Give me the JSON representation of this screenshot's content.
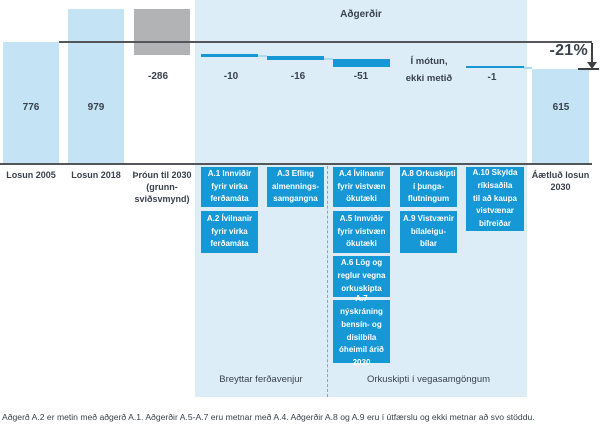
{
  "header": {
    "actions_title": "Aðgerðir"
  },
  "waterfall": {
    "percent_change": "-21%",
    "pending_note": "Í mótun,\nekki metið",
    "values": {
      "losun2005": "776",
      "losun2018": "979",
      "throun2030": "-286",
      "a1a2": "-10",
      "a3": "-16",
      "a4a7": "-51",
      "a10": "-1",
      "aetlud2030": "615"
    },
    "column_labels": {
      "losun2005": "Losun 2005",
      "losun2018": "Losun 2018",
      "throun2030": "Þróun til 2030\n(grunn-\nsviðsvmynd)",
      "aetlud2030": "Áætluð losun\n2030"
    }
  },
  "actions": [
    {
      "label": "A.1 Innviðir\nfyrir virka\nferðamáta"
    },
    {
      "label": "A.2 Ívilnanir\nfyrir virka\nferðamáta"
    },
    {
      "label": "A.3 Efling\nalmennings-\nsamgangna"
    },
    {
      "label": "A.4 Ívilnanir\nfyrir vistvæn\nökutæki"
    },
    {
      "label": "A.5 Innviðir\nfyrir vistvæn\nökutæki"
    },
    {
      "label": "A.6 Lög og\nreglur vegna\norkuskipta"
    },
    {
      "label": "A.7 nýskráning\nbensín- og\ndísilbíla\nóheimil árið\n2030"
    },
    {
      "label": "A.8 Orkuskipti\ní þunga-\nflutningum"
    },
    {
      "label": "A.9 Vistvænir\nbílaleigu-\nbílar"
    },
    {
      "label": "A.10 Skylda\nríkisaðila\ntil að kaupa\nvistvænar\nbifreiðar"
    }
  ],
  "groups": {
    "left": "Breyttar ferðavenjur",
    "right": "Orkuskipti í vegasamgöngum"
  },
  "footnote": "Aðgerð A.2 er metin með aðgerð A.1. Aðgerðir A.5-A.7 eru metnar með A.4. Aðgerðir A.8 og A.9 eru í útfærslu og ekki metnar að svo stöddu.",
  "colors": {
    "light_bar": "#c4e4f5",
    "panel": "#dcedf8",
    "action_blue": "#1798d6",
    "gray_bar": "#b2b3b5",
    "line": "#54565a",
    "text": "#3a424c"
  },
  "chart_data": {
    "type": "waterfall",
    "title": "Aðgerðir",
    "categories": [
      "Losun 2005",
      "Losun 2018",
      "Þróun til 2030 (grunn-sviðsvmynd)",
      "A.1/A.2 Innviðir og ívilnanir fyrir virka ferðamáta",
      "A.3 Efling almenningssamgangna",
      "A.4–A.7 Vistvæn ökutæki og orkuskipti",
      "A.8/A.9 Orkuskipti í þungaflutningum og bílaleigubílar",
      "A.10 Skylda ríkisaðila til að kaupa vistvænar bifreiðar",
      "Áætluð losun 2030"
    ],
    "values": [
      776,
      979,
      -286,
      -10,
      -16,
      -51,
      null,
      -1,
      615
    ],
    "bar_roles": [
      "total",
      "total",
      "delta",
      "delta",
      "delta",
      "delta",
      "not-assessed",
      "delta",
      "total"
    ],
    "not_assessed_note": "Í mótun, ekki metið",
    "reference_level": 776,
    "percent_change_2005_to_2030": -21,
    "groups": [
      {
        "label": "Breyttar ferðavenjur",
        "category_indexes": [
          3,
          4
        ]
      },
      {
        "label": "Orkuskipti í vegasamgöngum",
        "category_indexes": [
          5,
          6,
          7
        ]
      }
    ],
    "footnote": "Aðgerð A.2 er metin með aðgerð A.1. Aðgerðir A.5-A.7 eru metnar með A.4. Aðgerðir A.8 og A.9 eru í útfærslu og ekki metnar að svo stöddu."
  }
}
